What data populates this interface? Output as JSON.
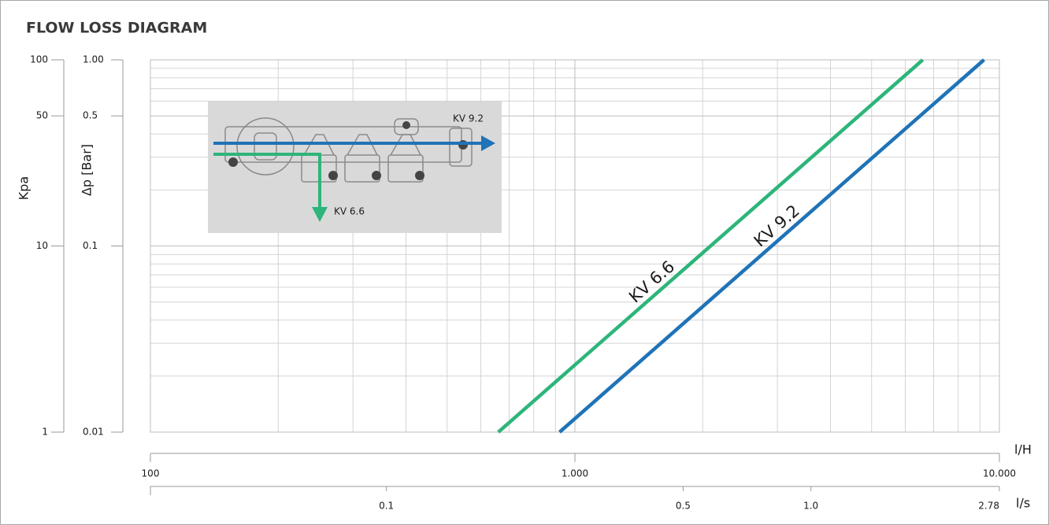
{
  "chart_data": {
    "type": "line",
    "title": "FLOW LOSS DIAGRAM",
    "xlabel": "l/H",
    "x2label": "l/s",
    "ylabel": "Δp [Bar]",
    "y2label": "Kpa",
    "log_x": true,
    "log_y": true,
    "grid": true,
    "xlim": [
      100,
      10000
    ],
    "xticks": [
      100,
      {
        "value": 1000,
        "label": "1.000"
      },
      {
        "value": 10000,
        "label": "10.000"
      }
    ],
    "minor_xticks": [
      200,
      300,
      400,
      500,
      600,
      700,
      800,
      900,
      2000,
      3000,
      4000,
      5000,
      6000,
      7000,
      8000,
      9000
    ],
    "x2lim": [
      0.0278,
      2.78
    ],
    "x2ticks": [
      0.1,
      0.5,
      {
        "value": 1,
        "label": "1.0"
      },
      2.78
    ],
    "ylim": [
      0.01,
      1
    ],
    "yticks": [
      0.01,
      0.1,
      0.5,
      {
        "value": 1,
        "label": "1.00"
      }
    ],
    "minor_yticks": [
      0.02,
      0.03,
      0.04,
      0.05,
      0.06,
      0.07,
      0.08,
      0.09,
      0.2,
      0.3,
      0.4,
      0.6,
      0.7,
      0.8,
      0.9
    ],
    "y2lim": [
      1,
      100
    ],
    "y2ticks": [
      1,
      10,
      50,
      100
    ],
    "series": [
      {
        "name": "KV 6.6",
        "color": "#2db57a",
        "x": [
          660,
          6600
        ],
        "values": [
          0.01,
          1
        ]
      },
      {
        "name": "KV 9.2",
        "color": "#1f73b7",
        "x": [
          920,
          9200
        ],
        "values": [
          0.01,
          1
        ]
      }
    ]
  }
}
